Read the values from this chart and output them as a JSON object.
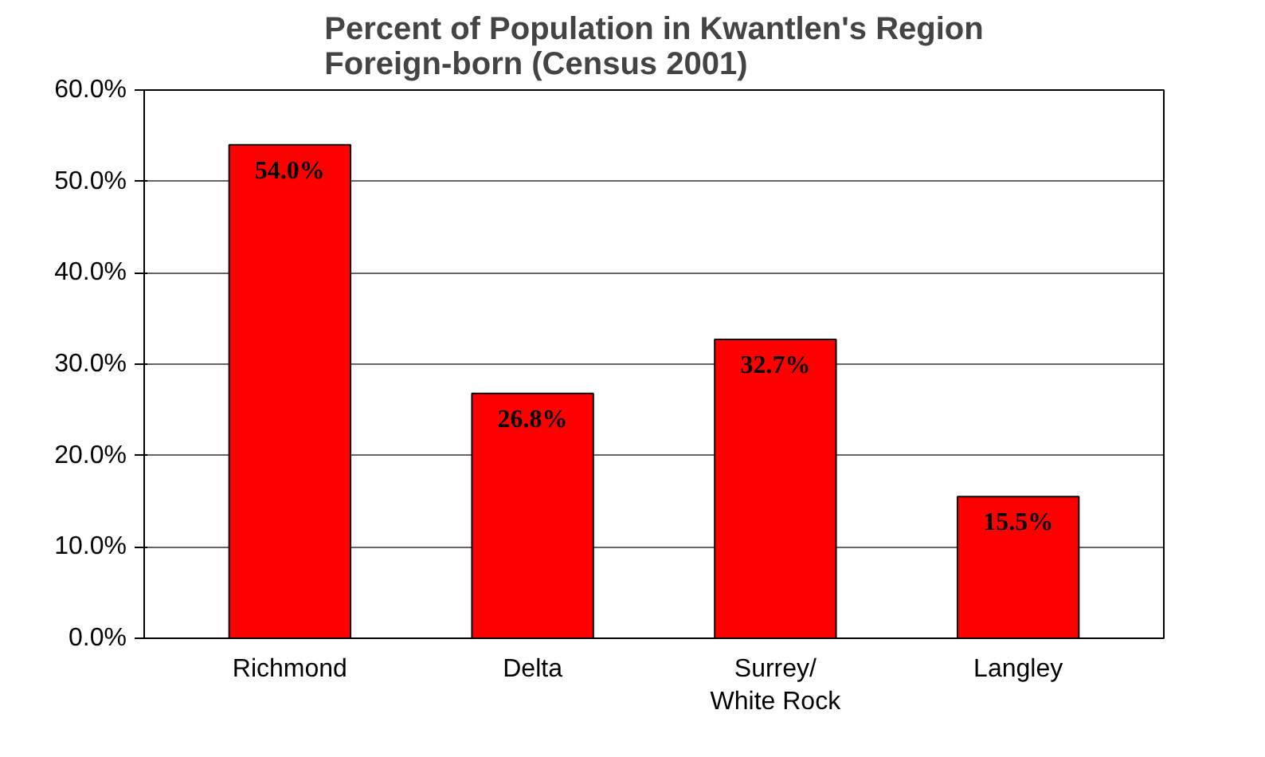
{
  "chart_data": {
    "type": "bar",
    "title": "Percent of Population in Kwantlen's Region\nForeign-born (Census 2001)",
    "categories": [
      "Richmond",
      "Delta",
      "Surrey/\nWhite Rock",
      "Langley"
    ],
    "values": [
      54.0,
      26.8,
      32.7,
      15.5
    ],
    "value_labels": [
      "54.0%",
      "26.8%",
      "32.7%",
      "15.5%"
    ],
    "color": "#ff0000",
    "ylim": [
      0,
      60
    ],
    "yticks": [
      {
        "value": 0,
        "label": "0.0%"
      },
      {
        "value": 10,
        "label": "10.0%"
      },
      {
        "value": 20,
        "label": "20.0%"
      },
      {
        "value": 30,
        "label": "30.0%"
      },
      {
        "value": 40,
        "label": "40.0%"
      },
      {
        "value": 50,
        "label": "50.0%"
      },
      {
        "value": 60,
        "label": "60.0%"
      }
    ],
    "grid": "y"
  }
}
